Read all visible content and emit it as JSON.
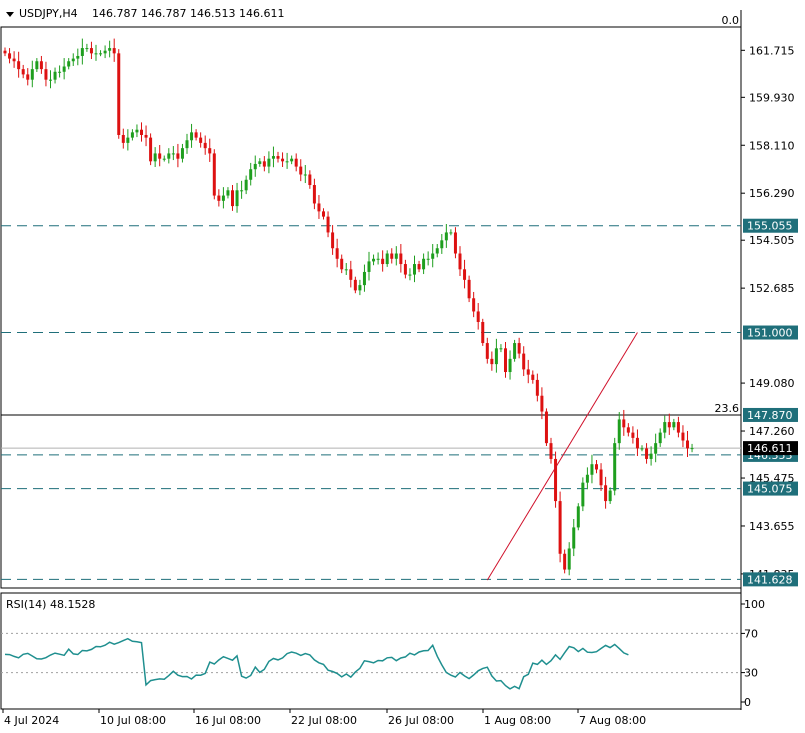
{
  "header": {
    "symbol": "USDJPY,H4",
    "ohlc": "146.787 146.787 146.513 146.611",
    "corner_value": "0.0"
  },
  "colors": {
    "bull": "#1e9e1e",
    "bear": "#dd1111",
    "level": "#1f6f7a",
    "label_bg": "#1f6f7a",
    "rsi": "#1f8f8f",
    "trend": "#d0102a"
  },
  "chart_data": [
    {
      "type": "candlestick",
      "title": "USDJPY,H4",
      "y_ticks": [
        "161.715",
        "159.930",
        "158.110",
        "156.290",
        "154.505",
        "152.685",
        "149.080",
        "147.260",
        "145.475",
        "143.655",
        "141.835"
      ],
      "ylim": [
        141.3,
        162.6
      ],
      "x_tick_labels": [
        "4 Jul 2024",
        "10 Jul 08:00",
        "16 Jul 08:00",
        "22 Jul 08:00",
        "26 Jul 08:00",
        "1 Aug 08:00",
        "7 Aug 08:00"
      ],
      "current_price": "146.611",
      "horizontal_levels": [
        {
          "value": 155.055,
          "label": "155.055",
          "style": "dashed"
        },
        {
          "value": 151.0,
          "label": "151.000",
          "style": "dashed"
        },
        {
          "value": 147.87,
          "label": "147.870",
          "style": "solid",
          "annotation": "23.6"
        },
        {
          "value": 146.353,
          "label": "146.353",
          "style": "dashed"
        },
        {
          "value": 145.075,
          "label": "145.075",
          "style": "dashed"
        },
        {
          "value": 141.628,
          "label": "141.628",
          "style": "dashed"
        }
      ],
      "trendline": {
        "from": [
          106,
          141.6
        ],
        "to": [
          139,
          151.0
        ]
      },
      "closes": [
        161.6,
        161.4,
        161.3,
        161.0,
        160.8,
        160.6,
        161.0,
        161.3,
        161.0,
        160.6,
        160.6,
        160.9,
        160.9,
        161.1,
        161.3,
        161.4,
        161.5,
        161.8,
        161.8,
        161.6,
        161.6,
        161.6,
        161.7,
        161.8,
        161.6,
        158.5,
        158.2,
        158.4,
        158.6,
        158.7,
        158.5,
        158.4,
        157.5,
        157.8,
        157.6,
        157.6,
        157.8,
        157.8,
        157.6,
        158.0,
        158.3,
        158.6,
        158.4,
        158.2,
        158.0,
        157.8,
        156.2,
        156.0,
        156.2,
        156.4,
        155.8,
        156.4,
        156.4,
        156.8,
        157.2,
        157.4,
        157.5,
        157.3,
        157.6,
        157.7,
        157.6,
        157.5,
        157.5,
        157.6,
        157.3,
        157.0,
        157.0,
        156.6,
        155.9,
        155.6,
        155.4,
        154.8,
        154.2,
        153.8,
        153.4,
        153.4,
        153.0,
        152.6,
        152.8,
        153.3,
        153.7,
        153.8,
        153.8,
        153.6,
        154.0,
        153.8,
        154.0,
        153.6,
        153.2,
        153.2,
        153.6,
        153.4,
        153.8,
        153.8,
        154.0,
        154.2,
        154.5,
        154.8,
        154.8,
        154.0,
        153.4,
        153.0,
        152.3,
        151.8,
        151.4,
        150.6,
        150.0,
        149.8,
        150.4,
        150.4,
        149.5,
        150.0,
        150.6,
        150.2,
        149.6,
        149.4,
        149.2,
        148.6,
        148.0,
        146.8,
        146.2,
        144.6,
        142.6,
        142.0,
        142.8,
        143.6,
        144.4,
        145.3,
        145.6,
        146.0,
        145.8,
        145.2,
        144.6,
        145.0,
        146.8,
        147.7,
        147.4,
        147.2,
        147.0,
        146.6,
        146.6,
        146.2,
        146.4,
        146.8,
        147.2,
        147.6,
        147.4,
        147.6,
        147.2,
        146.9,
        146.6,
        146.611
      ]
    },
    {
      "type": "line",
      "title": "RSI(14) 48.1528",
      "y_ticks": [
        "100",
        "70",
        "30",
        "0"
      ],
      "ylim": [
        0,
        100
      ],
      "reference_levels": [
        70,
        30
      ],
      "series": [
        {
          "name": "RSI(14)",
          "values": [
            48.6,
            48.4,
            46.5,
            45.1,
            48.7,
            49.6,
            46.9,
            44.1,
            43.9,
            45.2,
            48.0,
            49.9,
            48.8,
            47.7,
            53.9,
            49.1,
            48.5,
            52.5,
            52.1,
            53.7,
            56.6,
            56.3,
            58.0,
            61.0,
            59.0,
            60.6,
            62.7,
            64.6,
            61.9,
            61.4,
            60.6,
            17.4,
            21.8,
            22.9,
            23.6,
            23.3,
            26.9,
            31.3,
            27.3,
            25.9,
            26.0,
            23.5,
            27.4,
            27.3,
            29.2,
            40.7,
            38.8,
            42.9,
            46.2,
            44.5,
            42.7,
            47.1,
            26.3,
            24.4,
            27.0,
            35.6,
            30.2,
            33.3,
            41.4,
            44.4,
            43.0,
            45.0,
            49.4,
            51.0,
            49.8,
            47.6,
            49.5,
            48.1,
            43.0,
            40.0,
            38.4,
            32.4,
            31.1,
            29.2,
            25.6,
            28.6,
            25.4,
            30.5,
            34.4,
            42.0,
            41.2,
            40.0,
            42.3,
            42.0,
            45.1,
            45.5,
            42.1,
            44.9,
            46.0,
            49.8,
            48.1,
            51.0,
            52.2,
            52.6,
            57.9,
            46.6,
            37.9,
            30.1,
            27.3,
            25.5,
            30.1,
            26.6,
            23.9,
            27.5,
            31.8,
            34.3,
            35.5,
            26.6,
            21.4,
            21.8,
            16.7,
            13.4,
            16.0,
            13.6,
            25.8,
            28.3,
            39.7,
            38.4,
            42.7,
            38.4,
            42.1,
            48.1,
            43.5,
            50.2,
            56.6,
            55.3,
            51.4,
            54.7,
            50.8,
            50.5,
            51.3,
            54.6,
            57.8,
            55.5,
            58.7,
            54.5,
            50.1,
            48.2
          ]
        }
      ]
    }
  ]
}
